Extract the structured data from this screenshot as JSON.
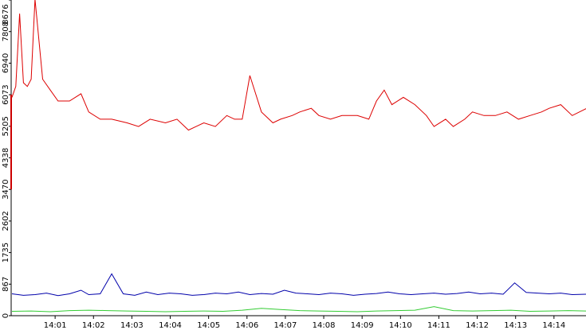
{
  "chart_data": {
    "type": "line",
    "title": "",
    "xlabel": "",
    "ylabel": "",
    "ylim": [
      0,
      8676
    ],
    "xlim_minutes": [
      14.0,
      14.98
    ],
    "y_ticks": [
      "0",
      "867",
      "1735",
      "2602",
      "3470",
      "4338",
      "5205",
      "6073",
      "6940",
      "7808",
      "8676"
    ],
    "y_tick_values": [
      0,
      867,
      1735,
      2602,
      3470,
      4338,
      5205,
      6073,
      6940,
      7808,
      8676
    ],
    "x_ticks": [
      "14:01",
      "14:02",
      "14:03",
      "14:04",
      "14:05",
      "14:06",
      "14:07",
      "14:08",
      "14:09",
      "14:10",
      "14:11",
      "14:12",
      "14:13",
      "14:14"
    ],
    "x_tick_values": [
      1,
      2,
      3,
      4,
      5,
      6,
      7,
      8,
      9,
      10,
      11,
      12,
      13,
      14
    ],
    "grid": false,
    "red_axis_segment": [
      3470,
      6073
    ],
    "series": [
      {
        "color": "#dd0000",
        "x": [
          0.0,
          0.1,
          0.2,
          0.3,
          0.4,
          0.5,
          0.6,
          0.8,
          1.0,
          1.2,
          1.5,
          1.8,
          2.0,
          2.3,
          2.6,
          3.0,
          3.3,
          3.6,
          4.0,
          4.3,
          4.6,
          4.8,
          5.0,
          5.3,
          5.6,
          5.8,
          6.0,
          6.2,
          6.5,
          6.8,
          7.0,
          7.3,
          7.5,
          7.8,
          8.0,
          8.3,
          8.6,
          9.0,
          9.3,
          9.5,
          9.7,
          9.9,
          10.2,
          10.5,
          10.8,
          11.0,
          11.3,
          11.5,
          11.8,
          12.0,
          12.3,
          12.6,
          12.9,
          13.2,
          13.5,
          13.8,
          14.0,
          14.3,
          14.6,
          14.98
        ],
        "y": [
          6000,
          6300,
          8300,
          6400,
          6300,
          6500,
          8700,
          6500,
          6200,
          5900,
          5900,
          6100,
          5600,
          5400,
          5400,
          5300,
          5200,
          5400,
          5300,
          5400,
          5100,
          5200,
          5300,
          5200,
          5500,
          5400,
          5400,
          6600,
          5600,
          5300,
          5400,
          5500,
          5600,
          5700,
          5500,
          5400,
          5500,
          5500,
          5400,
          5900,
          6200,
          5800,
          6000,
          5800,
          5500,
          5200,
          5400,
          5200,
          5400,
          5600,
          5500,
          5500,
          5600,
          5400,
          5500,
          5600,
          5700,
          5800,
          5500,
          5700
        ]
      },
      {
        "color": "#0000aa",
        "x": [
          0.0,
          0.3,
          0.6,
          0.9,
          1.2,
          1.5,
          1.8,
          2.0,
          2.3,
          2.6,
          2.9,
          3.2,
          3.5,
          3.8,
          4.1,
          4.4,
          4.7,
          5.0,
          5.3,
          5.6,
          5.9,
          6.2,
          6.5,
          6.8,
          7.1,
          7.4,
          7.7,
          8.0,
          8.3,
          8.6,
          8.9,
          9.2,
          9.5,
          9.8,
          10.1,
          10.4,
          10.7,
          11.0,
          11.3,
          11.6,
          11.9,
          12.2,
          12.5,
          12.8,
          13.1,
          13.4,
          13.7,
          14.0,
          14.3,
          14.6,
          14.98
        ],
        "y": [
          600,
          560,
          580,
          620,
          550,
          600,
          700,
          580,
          600,
          1150,
          600,
          560,
          650,
          580,
          620,
          600,
          560,
          580,
          620,
          600,
          650,
          580,
          610,
          590,
          700,
          620,
          600,
          580,
          620,
          600,
          560,
          590,
          610,
          650,
          600,
          580,
          600,
          620,
          590,
          610,
          650,
          600,
          620,
          590,
          900,
          640,
          620,
          600,
          620,
          580,
          590
        ]
      },
      {
        "color": "#33cc33",
        "x": [
          0.0,
          0.5,
          1.0,
          1.5,
          2.0,
          2.5,
          3.0,
          3.5,
          4.0,
          4.5,
          5.0,
          5.5,
          6.0,
          6.5,
          7.0,
          7.5,
          8.0,
          8.5,
          9.0,
          9.5,
          10.0,
          10.5,
          11.0,
          11.5,
          12.0,
          12.5,
          13.0,
          13.5,
          14.0,
          14.5,
          14.98
        ],
        "y": [
          120,
          130,
          110,
          140,
          150,
          140,
          130,
          120,
          110,
          120,
          130,
          120,
          150,
          200,
          170,
          140,
          130,
          120,
          110,
          130,
          140,
          150,
          250,
          140,
          130,
          140,
          150,
          120,
          130,
          140,
          130
        ]
      }
    ]
  }
}
